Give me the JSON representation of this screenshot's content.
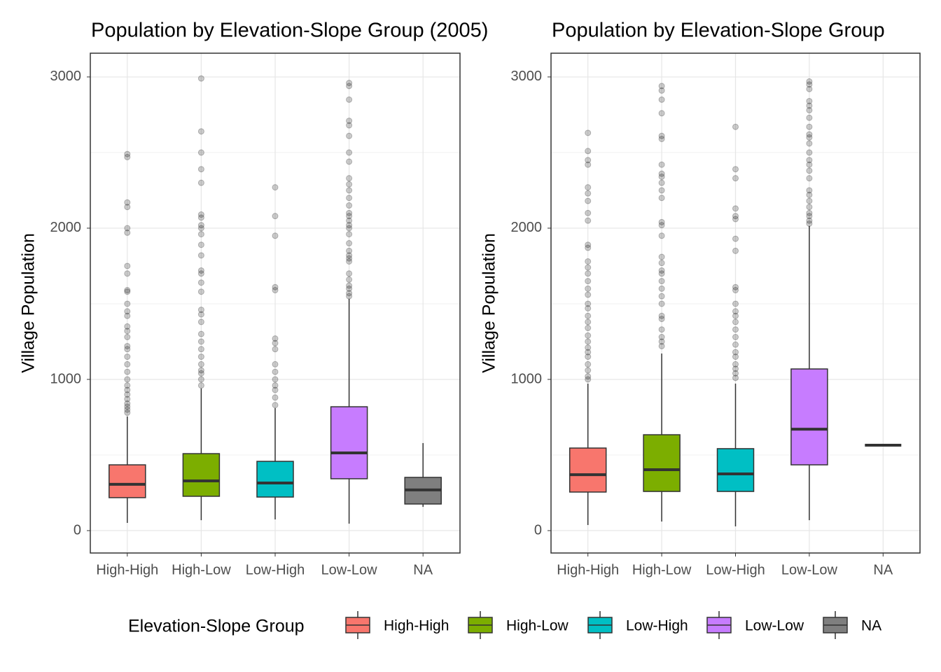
{
  "chart_data": [
    {
      "type": "box",
      "title": "Population by Elevation-Slope Group (2005)",
      "y_label": "Village Population",
      "categories": [
        "High-High",
        "High-Low",
        "Low-High",
        "Low-Low",
        "NA"
      ],
      "colors": [
        "#F8766D",
        "#7CAE00",
        "#00BFC4",
        "#C77CFF",
        "#7F7F7F"
      ],
      "ylim": [
        -148,
        3157
      ],
      "yticks": [
        0,
        1000,
        2000,
        3000
      ],
      "minor_yticks": [
        500,
        1500,
        2500
      ],
      "grid": true,
      "boxes": [
        {
          "low": 51,
          "q1": 218,
          "median": 306,
          "q3": 435,
          "high": 755,
          "outliers": [
            2490,
            2470,
            2170,
            2140,
            2000,
            1970,
            1750,
            1700,
            1590,
            1580,
            1500,
            1450,
            1420,
            1350,
            1320,
            1280,
            1220,
            1200,
            1150,
            1100,
            1050,
            1000,
            960,
            930,
            900,
            870,
            840,
            820,
            800,
            780
          ]
        },
        {
          "low": 69,
          "q1": 227,
          "median": 329,
          "q3": 509,
          "high": 940,
          "outliers": [
            2990,
            2640,
            2500,
            2390,
            2300,
            2090,
            2070,
            2020,
            2000,
            1960,
            1890,
            1820,
            1720,
            1700,
            1640,
            1580,
            1460,
            1430,
            1380,
            1300,
            1250,
            1200,
            1150,
            1100,
            1060,
            1040,
            1000,
            960
          ]
        },
        {
          "low": 74,
          "q1": 222,
          "median": 315,
          "q3": 458,
          "high": 810,
          "outliers": [
            2270,
            2080,
            1950,
            1610,
            1590,
            1270,
            1240,
            1200,
            1100,
            1050,
            1000,
            960,
            930,
            880,
            830
          ]
        },
        {
          "low": 46,
          "q1": 343,
          "median": 514,
          "q3": 819,
          "high": 1532,
          "outliers": [
            2960,
            2940,
            2850,
            2710,
            2680,
            2610,
            2500,
            2440,
            2330,
            2290,
            2250,
            2200,
            2150,
            2100,
            2080,
            2050,
            2020,
            2000,
            1960,
            1900,
            1850,
            1820,
            1800,
            1780,
            1700,
            1660,
            1620,
            1600,
            1570,
            1550
          ]
        },
        {
          "low": 157,
          "q1": 176,
          "median": 269,
          "q3": 352,
          "high": 579,
          "outliers": []
        }
      ]
    },
    {
      "type": "box",
      "title": "Population by Elevation-Slope Group",
      "y_label": "Village Population",
      "categories": [
        "High-High",
        "High-Low",
        "Low-High",
        "Low-Low",
        "NA"
      ],
      "colors": [
        "#F8766D",
        "#7CAE00",
        "#00BFC4",
        "#C77CFF",
        "#7F7F7F"
      ],
      "ylim": [
        -148,
        3157
      ],
      "yticks": [
        0,
        1000,
        2000,
        3000
      ],
      "minor_yticks": [
        500,
        1500,
        2500
      ],
      "grid": true,
      "boxes": [
        {
          "low": 37,
          "q1": 255,
          "median": 370,
          "q3": 546,
          "high": 972,
          "outliers": [
            2630,
            2510,
            2450,
            2420,
            2270,
            2230,
            2180,
            2100,
            2050,
            1890,
            1870,
            1780,
            1740,
            1700,
            1650,
            1600,
            1560,
            1500,
            1470,
            1420,
            1380,
            1340,
            1290,
            1250,
            1210,
            1180,
            1150,
            1100,
            1060,
            1020,
            1000
          ]
        },
        {
          "low": 60,
          "q1": 259,
          "median": 403,
          "q3": 634,
          "high": 1171,
          "outliers": [
            2940,
            2910,
            2850,
            2760,
            2610,
            2590,
            2420,
            2360,
            2340,
            2300,
            2250,
            2200,
            2040,
            2020,
            1950,
            1810,
            1770,
            1720,
            1700,
            1650,
            1600,
            1550,
            1500,
            1420,
            1400,
            1330,
            1280,
            1250,
            1220
          ]
        },
        {
          "low": 28,
          "q1": 259,
          "median": 375,
          "q3": 542,
          "high": 972,
          "outliers": [
            2670,
            2390,
            2330,
            2130,
            2080,
            2060,
            1930,
            1850,
            1610,
            1590,
            1500,
            1450,
            1420,
            1380,
            1330,
            1280,
            1230,
            1180,
            1150,
            1100,
            1070,
            1040,
            1010
          ]
        },
        {
          "low": 69,
          "q1": 435,
          "median": 671,
          "q3": 1069,
          "high": 2014,
          "outliers": [
            2970,
            2950,
            2920,
            2840,
            2810,
            2780,
            2730,
            2670,
            2620,
            2600,
            2560,
            2500,
            2450,
            2420,
            2380,
            2330,
            2250,
            2220,
            2180,
            2140,
            2100,
            2080,
            2050,
            2030
          ]
        },
        {
          "low": 565,
          "q1": 565,
          "median": 565,
          "q3": 565,
          "high": 565,
          "outliers": []
        }
      ]
    }
  ],
  "legend": {
    "title": "Elevation-Slope Group",
    "labels": [
      "High-High",
      "High-Low",
      "Low-High",
      "Low-Low",
      "NA"
    ]
  }
}
